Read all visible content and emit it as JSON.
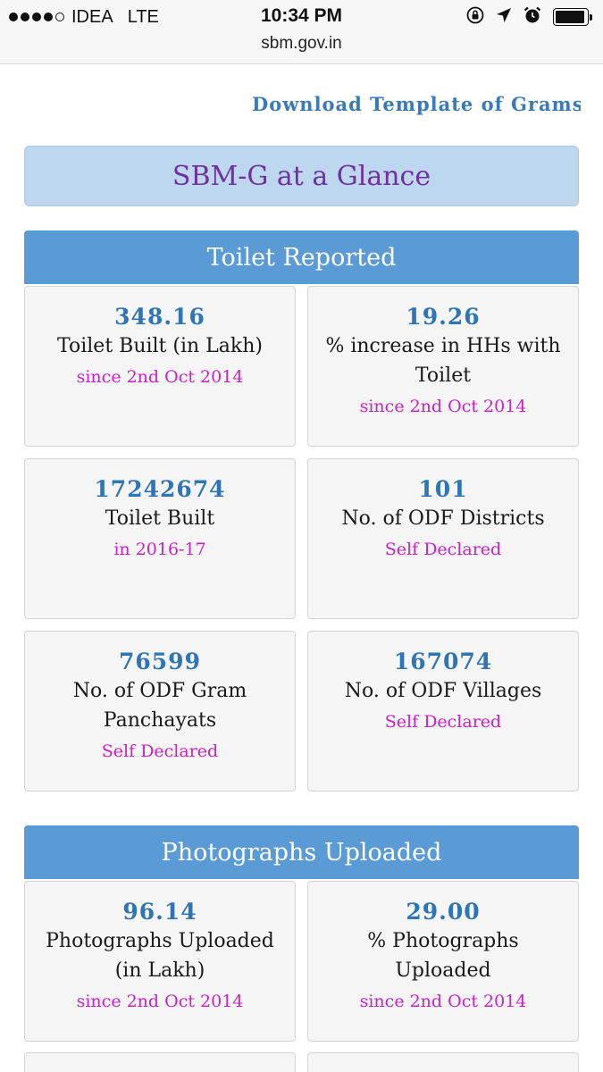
{
  "status_bar": {
    "carrier": "IDEA",
    "network": "LTE",
    "time": "10:34 PM",
    "signal_bars_filled": 4,
    "signal_bars_total": 5,
    "icons": [
      "rotation-lock-icon",
      "location-icon",
      "alarm-icon",
      "battery-icon"
    ],
    "battery_level": 0.95
  },
  "browser": {
    "url": "sbm.gov.in"
  },
  "page": {
    "download_link": "Download Template of Gramsa",
    "glance_title": "SBM-G at a Glance",
    "colors": {
      "accent": "#5b9bd5",
      "glance_bg": "#bdd7ee",
      "glance_text": "#7030a0",
      "value_text": "#2e75b6",
      "note_text": "#cc1fcc"
    },
    "toilet_section": {
      "title": "Toilet Reported",
      "cards": [
        {
          "value": "348.16",
          "label": "Toilet Built (in Lakh)",
          "note": "since 2nd Oct 2014"
        },
        {
          "value": "19.26",
          "label": "% increase in HHs with Toilet",
          "note": "since 2nd Oct 2014"
        },
        {
          "value": "17242674",
          "label": "Toilet Built",
          "note": "in 2016-17"
        },
        {
          "value": "101",
          "label": "No. of ODF Districts",
          "note": "Self Declared"
        },
        {
          "value": "76599",
          "label": "No. of ODF Gram Panchayats",
          "note": "Self Declared"
        },
        {
          "value": "167074",
          "label": "No. of ODF Villages",
          "note": "Self Declared"
        }
      ]
    },
    "photo_section": {
      "title": "Photographs Uploaded",
      "cards": [
        {
          "value": "96.14",
          "label": "Photographs Uploaded (in Lakh)",
          "note": "since 2nd Oct 2014"
        },
        {
          "value": "29.00",
          "label": "% Photographs Uploaded",
          "note": "since 2nd Oct 2014"
        }
      ]
    }
  }
}
